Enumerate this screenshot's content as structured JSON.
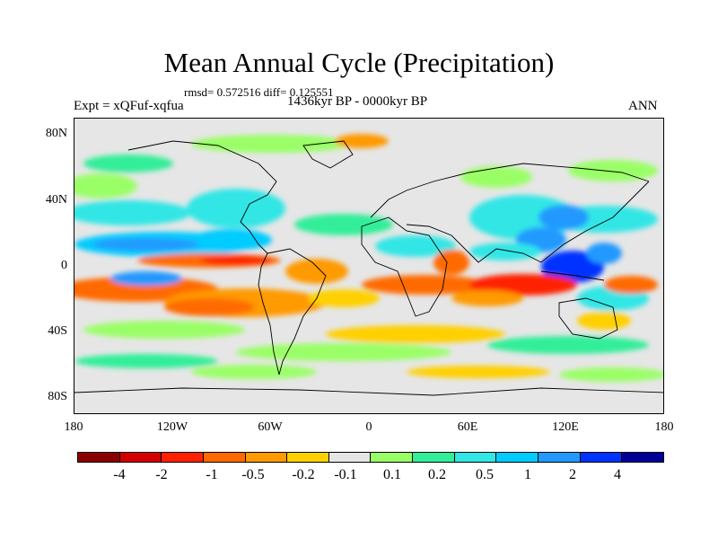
{
  "title": "Mean Annual Cycle (Precipitation)",
  "stats": "rmsd= 0.572516  diff= 0.125551",
  "left_label": "Expt = xQFuf-xqfua",
  "center_label": "1436kyr BP - 0000kyr BP",
  "right_label": "ANN",
  "lat_labels": [
    "80N",
    "40N",
    "0",
    "40S",
    "80S"
  ],
  "lon_labels": [
    "180",
    "120W",
    "60W",
    "0",
    "60E",
    "120E",
    "180"
  ],
  "colorbar": {
    "colors": [
      "#8b0000",
      "#d40000",
      "#ff2200",
      "#ff6a00",
      "#ff9a00",
      "#ffd000",
      "#e6e6e6",
      "#9aff66",
      "#33ee99",
      "#33e6e6",
      "#00ccff",
      "#2299ff",
      "#0033ff",
      "#000099"
    ],
    "labels": [
      "-4",
      "-2",
      "-1",
      "-0.5",
      "-0.2",
      "-0.1",
      "0.1",
      "0.2",
      "0.5",
      "1",
      "2",
      "4"
    ]
  }
}
